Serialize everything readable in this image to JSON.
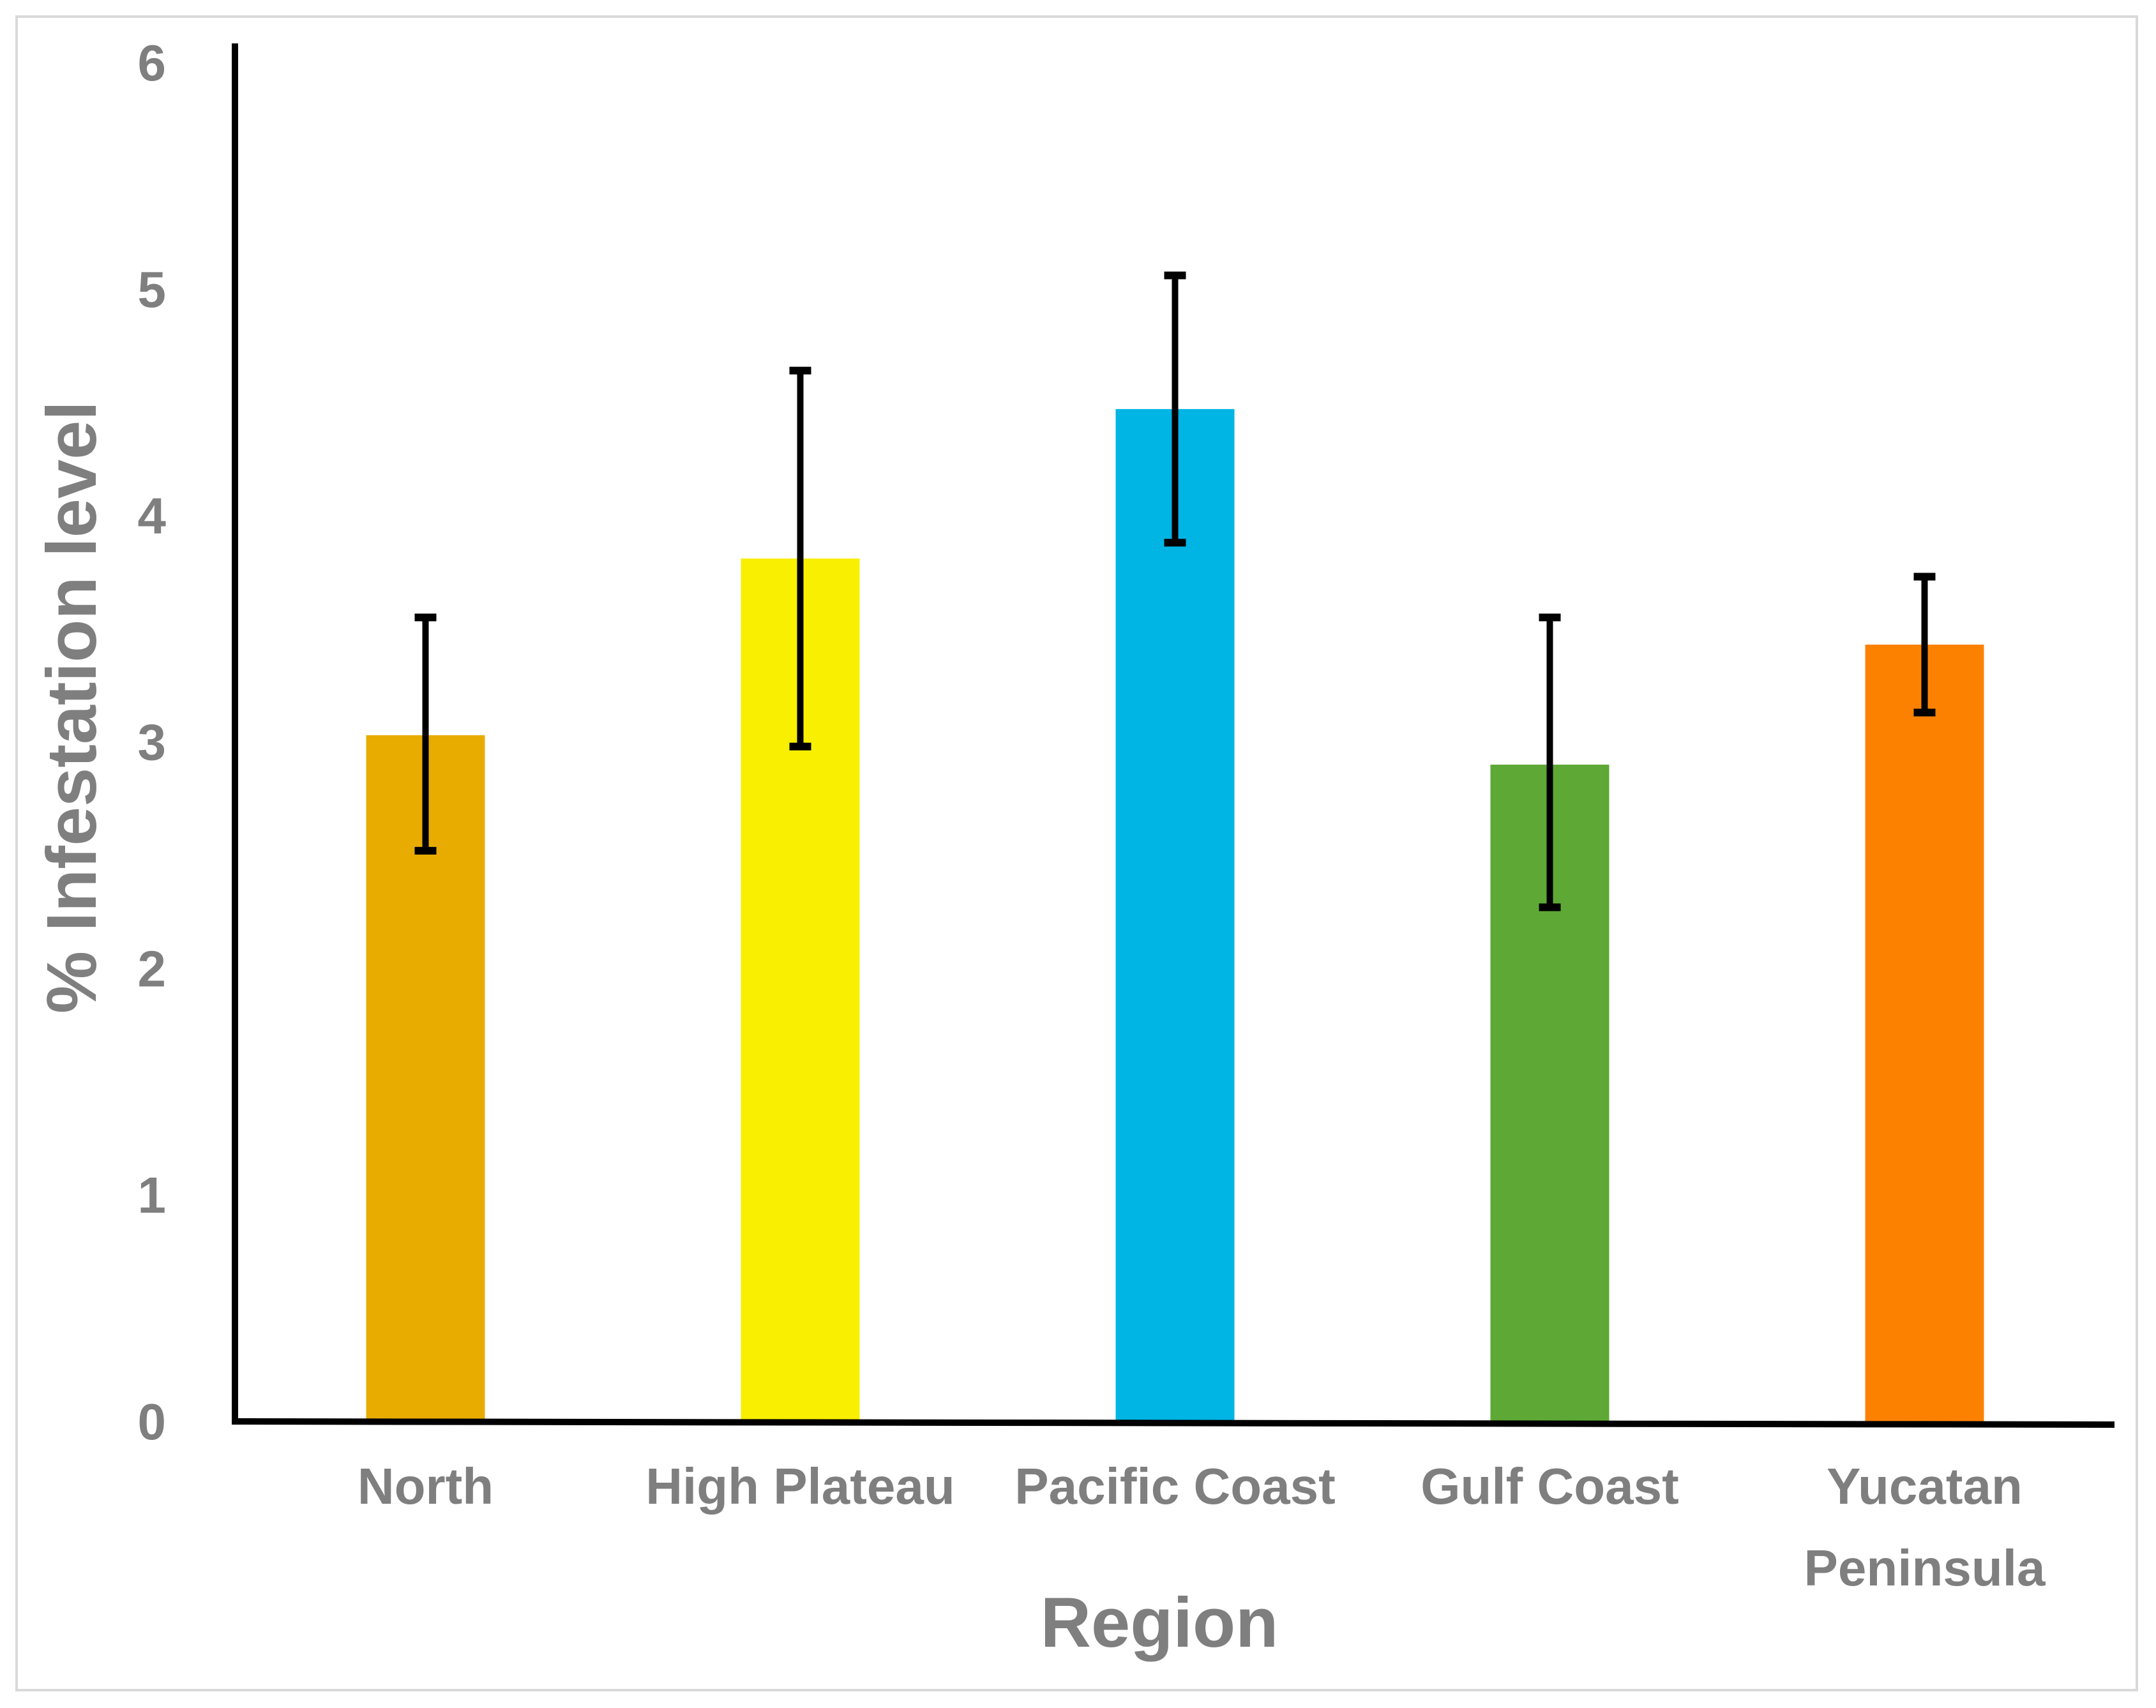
{
  "chart_data": {
    "type": "bar",
    "title": "",
    "xlabel": "Region",
    "ylabel": "% Infestation level",
    "ylim": [
      0,
      6
    ],
    "yticks": [
      0,
      1,
      2,
      3,
      4,
      5,
      6
    ],
    "grid": false,
    "categories": [
      [
        "North"
      ],
      [
        "High Plateau"
      ],
      [
        "Pacific Coast"
      ],
      [
        "Gulf Coast"
      ],
      [
        "Yucatan",
        "Peninsula"
      ]
    ],
    "values": [
      3.03,
      3.81,
      4.47,
      2.9,
      3.43
    ],
    "error_low": [
      2.52,
      2.98,
      3.88,
      2.27,
      3.13
    ],
    "error_high": [
      3.55,
      4.64,
      5.06,
      3.55,
      3.73
    ],
    "colors": [
      "#e8ac00",
      "#f9ef00",
      "#00b4e4",
      "#5ea936",
      "#fd8100"
    ]
  }
}
